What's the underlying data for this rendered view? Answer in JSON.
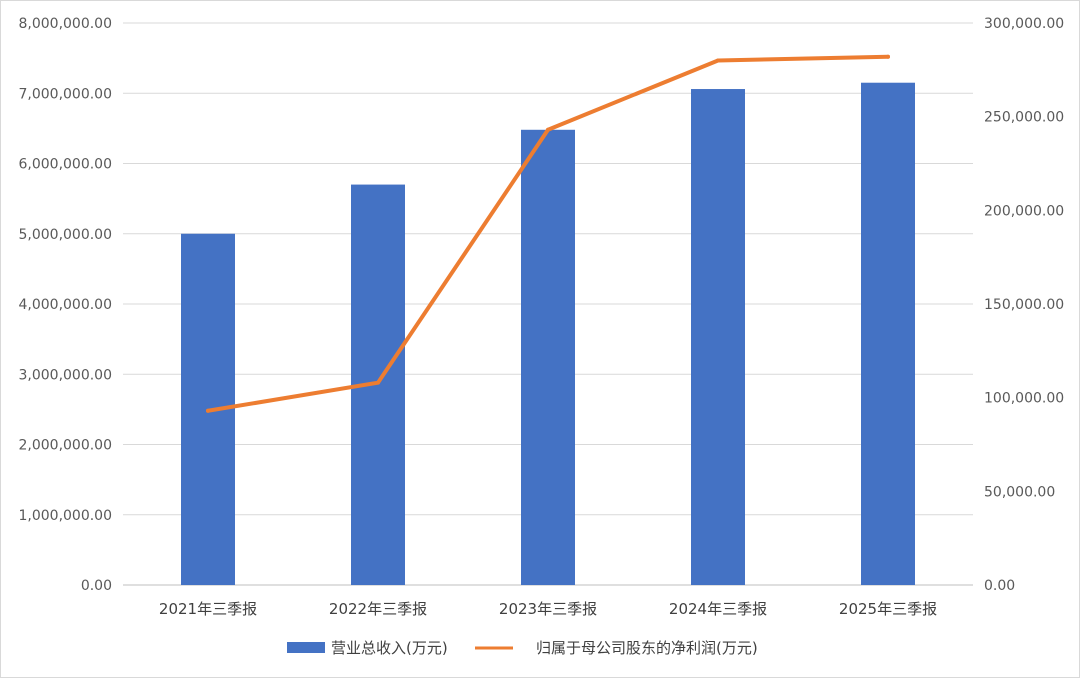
{
  "chart_data": {
    "type": "bar",
    "categories": [
      "2021年三季报",
      "2022年三季报",
      "2023年三季报",
      "2024年三季报",
      "2025年三季报"
    ],
    "series": [
      {
        "name": "营业总收入(万元)",
        "type": "bar",
        "axis": "left",
        "color": "#4472C4",
        "values": [
          5000000,
          5700000,
          6480000,
          7060000,
          7150000
        ]
      },
      {
        "name": "归属于母公司股东的净利润(万元)",
        "type": "line",
        "axis": "right",
        "color": "#ED7D31",
        "values": [
          93000,
          108000,
          243000,
          280000,
          282000
        ]
      }
    ],
    "y_left": {
      "ylim": [
        0,
        8000000
      ],
      "ticks": [
        0,
        1000000,
        2000000,
        3000000,
        4000000,
        5000000,
        6000000,
        7000000,
        8000000
      ],
      "tick_labels": [
        "0.00",
        "1,000,000.00",
        "2,000,000.00",
        "3,000,000.00",
        "4,000,000.00",
        "5,000,000.00",
        "6,000,000.00",
        "7,000,000.00",
        "8,000,000.00"
      ]
    },
    "y_right": {
      "ylim": [
        0,
        300000
      ],
      "ticks": [
        0,
        50000,
        100000,
        150000,
        200000,
        250000,
        300000
      ],
      "tick_labels": [
        "0.00",
        "50,000.00",
        "100,000.00",
        "150,000.00",
        "200,000.00",
        "250,000.00",
        "300,000.00"
      ]
    },
    "grid": true,
    "legend": "bottom",
    "title": "",
    "xlabel": "",
    "ylabel": ""
  }
}
